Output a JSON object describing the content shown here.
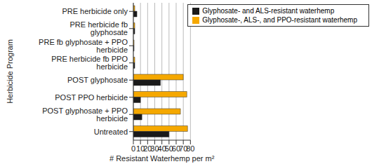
{
  "chart_data": {
    "type": "bar",
    "orientation": "horizontal",
    "x_label": "# Resistant Waterhemp per m²",
    "y_label": "Herbicide Program",
    "categories": [
      "PRE herbicide only",
      "PRE herbicide fb glyphosate",
      "PRE fb glyphosate + PPO herbicide",
      "PRE herbicide fb PPO herbicide",
      "POST glyphosate",
      "POST PPO herbicide",
      "POST glyphosate + PPO herbicide",
      "Untreated"
    ],
    "series": [
      {
        "name": "Glyphosate-, ALS-, and PPO-resistant waterhemp",
        "color": "#f5a800",
        "values": [
          2,
          2,
          1,
          2,
          70,
          75,
          66,
          76
        ]
      },
      {
        "name": "Glyphosate- and ALS-resistant waterhemp",
        "color": "#1a1a1a",
        "values": [
          5,
          2,
          1,
          2,
          38,
          10,
          12,
          50
        ]
      }
    ],
    "xlim": [
      0,
      80
    ],
    "xticks": [
      0,
      10,
      20,
      30,
      40,
      50,
      60,
      70,
      80
    ],
    "grid": true,
    "legend": "upper right"
  }
}
